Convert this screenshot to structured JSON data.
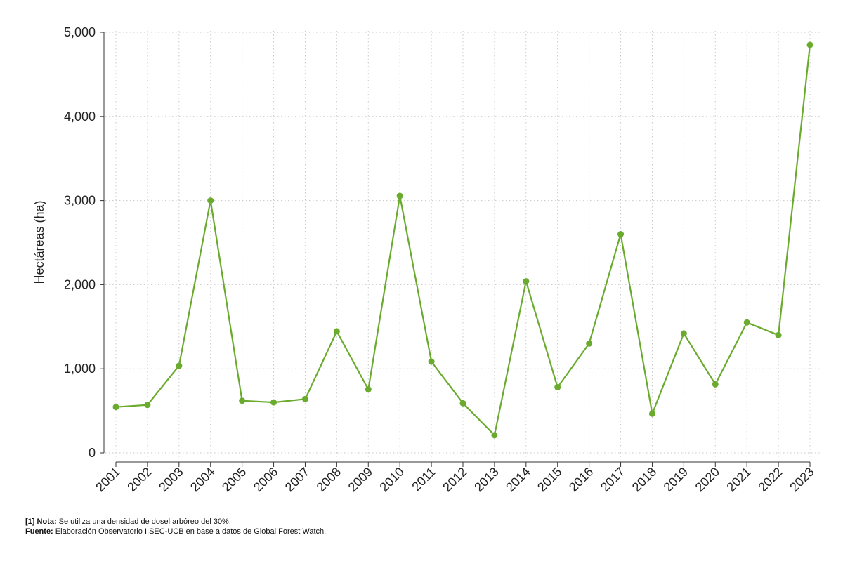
{
  "chart_data": {
    "type": "line",
    "title": "",
    "xlabel": "",
    "ylabel": "Hectáreas (ha)",
    "ylim": [
      0,
      5000
    ],
    "yticks": [
      0,
      1000,
      2000,
      3000,
      4000,
      5000
    ],
    "ytick_labels": [
      "0",
      "1,000",
      "2,000",
      "3,000",
      "4,000",
      "5,000"
    ],
    "grid": true,
    "categories": [
      "2001",
      "2002",
      "2003",
      "2004",
      "2005",
      "2006",
      "2007",
      "2008",
      "2009",
      "2010",
      "2011",
      "2012",
      "2013",
      "2014",
      "2015",
      "2016",
      "2017",
      "2018",
      "2019",
      "2020",
      "2021",
      "2022",
      "2023"
    ],
    "values": [
      545,
      570,
      1035,
      3000,
      620,
      600,
      640,
      1445,
      755,
      3055,
      1085,
      590,
      210,
      2040,
      780,
      1300,
      2600,
      465,
      1420,
      815,
      1550,
      1400,
      4850
    ],
    "line_color": "#6aab2e"
  },
  "notes": {
    "nota_label": "[1] Nota:",
    "nota_text": " Se utiliza una densidad de dosel arbóreo del 30%.",
    "fuente_label": "Fuente:",
    "fuente_text": " Elaboración Observatorio IISEC-UCB en base a datos de Global Forest Watch."
  }
}
